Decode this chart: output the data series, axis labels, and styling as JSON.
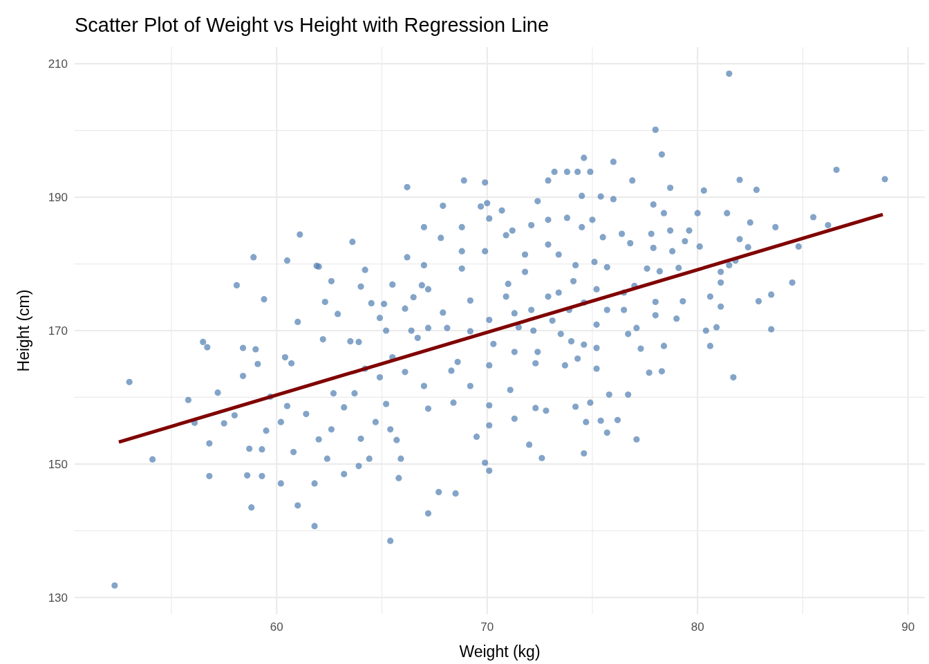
{
  "chart_data": {
    "type": "scatter",
    "title": "Scatter Plot of Weight vs Height with Regression Line",
    "xlabel": "Weight (kg)",
    "ylabel": "Height (cm)",
    "xlim": [
      50.4,
      90.8
    ],
    "ylim": [
      127.5,
      212.5
    ],
    "xticks": [
      {
        "value": 55,
        "label": null
      },
      60,
      {
        "value": 65,
        "label": null
      },
      70,
      {
        "value": 75,
        "label": null
      },
      80,
      {
        "value": 85,
        "label": null
      },
      90
    ],
    "yticks": [
      130,
      {
        "value": 140,
        "label": null
      },
      150,
      {
        "value": 160,
        "label": null
      },
      170,
      {
        "value": 180,
        "label": null
      },
      190,
      {
        "value": 200,
        "label": null
      },
      210
    ],
    "grid": true,
    "series": [
      {
        "marker": "circle",
        "color": "#4f7db0",
        "x": [
          52.3,
          53.0,
          54.1,
          55.8,
          56.5,
          56.1,
          56.8,
          57.2,
          58.1,
          58.9,
          59.4,
          58.8,
          60.5,
          61.0,
          61.1,
          61.8,
          61.9,
          63.6,
          65.4,
          66.2,
          66.2,
          67.2,
          67.7,
          68.5,
          68.9,
          69.9,
          69.9,
          70.1,
          74.3,
          74.6,
          76.0,
          78.0,
          78.3,
          81.5,
          80.3,
          82.0,
          82.8,
          86.6,
          88.9,
          85.5,
          86.2,
          84.8,
          83.7,
          84.5,
          83.5,
          83.5,
          82.9,
          81.7,
          80.6,
          80.9,
          80.4,
          79.4,
          78.7,
          75.7,
          77.1,
          76.2,
          74.6,
          72.6,
          72.0,
          71.3,
          72.8,
          74.2,
          74.9,
          75.4,
          76.7,
          77.7,
          78.3,
          58.4,
          59.0,
          58.4,
          59.1,
          59.7,
          60.4,
          60.7,
          61.0,
          60.2,
          60.5,
          59.5,
          58.7,
          59.3,
          58.0,
          58.6,
          59.3,
          60.2,
          60.8,
          61.4,
          62.0,
          61.8,
          62.4,
          62.6,
          62.7,
          62.2,
          62.3,
          62.6,
          62.9,
          62.0,
          63.5,
          63.9,
          64.2,
          63.7,
          63.2,
          63.2,
          63.9,
          64.4,
          64.0,
          64.7,
          64.0,
          64.2,
          64.5,
          64.9,
          65.2,
          65.1,
          65.5,
          65.5,
          64.9,
          65.2,
          65.4,
          65.7,
          65.8,
          65.9,
          66.1,
          66.4,
          66.1,
          66.5,
          66.7,
          66.9,
          67.0,
          67.0,
          67.2,
          67.2,
          67.0,
          67.2,
          67.8,
          67.9,
          68.1,
          67.9,
          68.3,
          68.4,
          68.6,
          68.8,
          68.8,
          68.8,
          69.2,
          69.2,
          69.2,
          69.5,
          69.7,
          70.0,
          70.1,
          69.9,
          70.1,
          70.3,
          70.1,
          70.1,
          70.1,
          70.7,
          70.9,
          71.2,
          71.0,
          70.9,
          71.3,
          71.5,
          71.3,
          71.1,
          71.8,
          71.8,
          72.1,
          72.1,
          72.2,
          72.3,
          72.3,
          72.4,
          72.4,
          72.9,
          72.9,
          72.9,
          72.9,
          73.1,
          73.2,
          73.4,
          73.4,
          73.5,
          73.7,
          73.8,
          73.8,
          73.9,
          74.0,
          74.1,
          74.2,
          74.3,
          74.5,
          74.5,
          74.6,
          74.6,
          74.7,
          74.9,
          75.0,
          75.1,
          75.2,
          75.2,
          75.2,
          75.2,
          75.4,
          75.5,
          75.7,
          75.7,
          75.8,
          76.0,
          76.4,
          76.5,
          76.5,
          76.7,
          76.8,
          76.9,
          77.0,
          77.1,
          77.3,
          77.6,
          77.8,
          77.9,
          77.9,
          78.0,
          78.0,
          78.2,
          78.4,
          78.4,
          78.7,
          78.8,
          79.0,
          79.1,
          79.3,
          79.6,
          80.0,
          80.1,
          80.6,
          81.1,
          81.1,
          81.1,
          81.4,
          81.5,
          81.8,
          82.0,
          82.4,
          82.5,
          56.7,
          57.5,
          56.8
        ],
        "values": [
          131.8,
          162.3,
          150.7,
          159.6,
          168.3,
          156.2,
          148.2,
          160.7,
          176.8,
          181.0,
          174.7,
          143.5,
          180.5,
          143.8,
          184.4,
          140.7,
          179.7,
          183.3,
          138.5,
          181.0,
          191.5,
          142.6,
          145.8,
          145.6,
          192.5,
          192.2,
          150.2,
          149.0,
          193.8,
          195.9,
          195.3,
          200.1,
          196.4,
          208.5,
          191.0,
          192.6,
          191.1,
          194.1,
          192.7,
          187.0,
          185.8,
          182.6,
          185.5,
          177.2,
          175.4,
          170.2,
          174.4,
          163.0,
          167.7,
          170.5,
          170.0,
          183.4,
          191.4,
          154.7,
          153.7,
          156.6,
          151.6,
          150.9,
          152.9,
          156.8,
          158.0,
          158.6,
          159.2,
          156.5,
          160.4,
          163.7,
          163.9,
          167.4,
          167.2,
          163.2,
          165.0,
          160.1,
          166.0,
          165.1,
          171.3,
          156.3,
          158.7,
          155.0,
          152.3,
          152.2,
          157.3,
          148.3,
          148.2,
          147.1,
          151.8,
          157.5,
          153.7,
          147.1,
          150.8,
          155.2,
          160.6,
          168.7,
          174.3,
          177.4,
          172.5,
          179.6,
          168.4,
          168.3,
          164.3,
          160.6,
          158.5,
          148.5,
          149.7,
          150.8,
          153.8,
          156.3,
          176.6,
          179.1,
          174.1,
          171.9,
          170.0,
          174.0,
          176.9,
          166.0,
          163.0,
          159.0,
          155.2,
          153.6,
          147.9,
          150.8,
          163.8,
          170.0,
          173.3,
          175.0,
          168.9,
          176.8,
          179.8,
          185.5,
          176.2,
          170.4,
          161.7,
          158.3,
          183.9,
          188.7,
          170.4,
          172.7,
          164.0,
          159.2,
          165.3,
          179.3,
          181.9,
          185.5,
          174.5,
          169.9,
          161.7,
          154.1,
          188.6,
          189.1,
          186.8,
          181.9,
          171.6,
          168.0,
          164.8,
          158.8,
          155.8,
          188.0,
          184.3,
          185.0,
          177.0,
          175.1,
          172.6,
          170.5,
          166.8,
          161.1,
          178.8,
          181.4,
          185.8,
          173.1,
          170.0,
          165.1,
          158.4,
          166.8,
          189.4,
          192.5,
          186.6,
          182.9,
          175.1,
          171.5,
          193.8,
          181.4,
          175.7,
          169.5,
          164.8,
          193.8,
          186.9,
          173.1,
          168.4,
          177.4,
          179.8,
          165.8,
          185.5,
          190.2,
          174.2,
          167.9,
          156.3,
          193.8,
          186.6,
          180.3,
          176.2,
          170.9,
          167.4,
          164.3,
          190.1,
          184.0,
          179.5,
          173.1,
          160.4,
          189.7,
          184.5,
          175.7,
          173.1,
          169.5,
          183.1,
          192.5,
          176.7,
          170.4,
          167.3,
          179.3,
          184.5,
          188.9,
          182.4,
          174.3,
          172.3,
          178.9,
          187.6,
          167.7,
          185.0,
          181.9,
          171.8,
          179.4,
          174.4,
          185.0,
          187.6,
          182.6,
          175.1,
          173.6,
          177.2,
          178.8,
          187.6,
          179.8,
          180.5,
          183.7,
          182.5,
          186.2,
          167.5,
          156.1,
          153.1
        ]
      },
      {
        "type": "line",
        "marker": "none",
        "color": "#800000",
        "x": [
          52.5,
          88.8
        ],
        "values": [
          153.3,
          187.4
        ]
      }
    ]
  }
}
